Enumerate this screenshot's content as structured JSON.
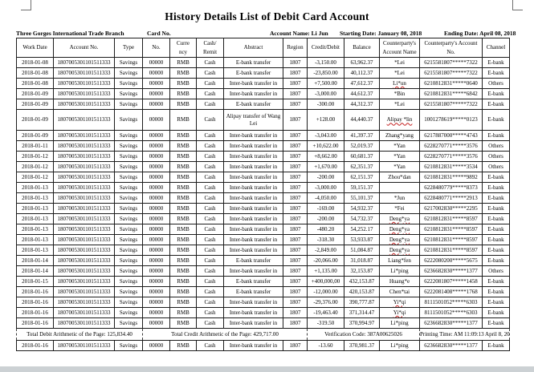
{
  "title": "History Details List of Debit Card Account",
  "info": {
    "branch": "Three Gorges International Trade Branch",
    "card_no_label": "Card No.",
    "account_name": "Account Name: Li Jun",
    "starting_date": "Starting Date: January 08, 2018",
    "ending_date": "Ending Date: April 08, 2018"
  },
  "colors": {
    "page_bg": "#ffffff",
    "table_border": "#1c1c1c",
    "wavy_underline": "#c42020",
    "bottom_strip": "#ccd1d4"
  },
  "table": {
    "columns": [
      "Work Date",
      "Account No.",
      "Type",
      "No.",
      "Curre\nncy",
      "Cash/\nRemit",
      "Abstract",
      "Region",
      "Credit/Debit",
      "Balance",
      "Counterparty's\nAccount Name",
      "Counterparty's Account\nNo.",
      "Channel"
    ],
    "rows": [
      {
        "cells": [
          "2018-01-08",
          "1807005301101511333",
          "Savings",
          "00000",
          "RMB",
          "Cash",
          "E-bank transfer",
          "1807",
          "-3,150.00",
          "63,962.37",
          "*Lei",
          "6215581807*****7322",
          "E-bank"
        ],
        "wavy": false,
        "tall": false
      },
      {
        "cells": [
          "2018-01-08",
          "1807005301101511333",
          "Savings",
          "00000",
          "RMB",
          "Cash",
          "E-bank transfer",
          "1807",
          "-23,850.00",
          "40,112.37",
          "*Lei",
          "6215581807*****7322",
          "E-bank"
        ],
        "wavy": false,
        "tall": false
      },
      {
        "cells": [
          "2018-01-08",
          "1807005301101511333",
          "Savings",
          "00000",
          "RMB",
          "Cash",
          "Inter-bank transfer in",
          "1807",
          "+7,500.00",
          "47,612.37",
          "Li*un",
          "6210812831*****0640",
          "Others"
        ],
        "wavy": true,
        "tall": false
      },
      {
        "cells": [
          "2018-01-09",
          "1807005301101511333",
          "Savings",
          "00000",
          "RMB",
          "Cash",
          "Inter-bank transfer in",
          "1807",
          "-3,000.00",
          "44,612.37",
          "*Bin",
          "6210812831*****6842",
          "E-bank"
        ],
        "wavy": false,
        "tall": false
      },
      {
        "cells": [
          "2018-01-09",
          "1807005301101511333",
          "Savings",
          "00000",
          "RMB",
          "Cash",
          "E-bank transfer",
          "1807",
          "-300.00",
          "44,312.37",
          "*Lei",
          "6215581807*****7322",
          "E-bank"
        ],
        "wavy": false,
        "tall": false
      },
      {
        "cells": [
          "2018-01-09",
          "1807005301101511333",
          "Savings",
          "00000",
          "RMB",
          "Cash",
          "Alipay transfer of Wang Lei",
          "1807",
          "+128.00",
          "44,440.37",
          "Alipay *lin",
          "1001278619*****0123",
          "E-bank"
        ],
        "wavy": true,
        "tall": true
      },
      {
        "cells": [
          "2018-01-09",
          "1807005301101511333",
          "Savings",
          "00000",
          "RMB",
          "Cash",
          "Inter-bank transfer in",
          "1807",
          "-3,043.00",
          "41,397.37",
          "Zhang*yang",
          "6217887000*****4743",
          "E-bank"
        ],
        "wavy": false,
        "tall": false
      },
      {
        "cells": [
          "2018-01-11",
          "1807005301101511333",
          "Savings",
          "00000",
          "RMB",
          "Cash",
          "Inter-bank transfer in",
          "1807",
          "+10,622.00",
          "52,019.37",
          "*Yan",
          "6228270771*****3576",
          "Others"
        ],
        "wavy": false,
        "tall": false
      },
      {
        "cells": [
          "2018-01-12",
          "1807005301101511333",
          "Savings",
          "00000",
          "RMB",
          "Cash",
          "Inter-bank transfer in",
          "1807",
          "+8,662.00",
          "60,681.37",
          "*Yan",
          "6228270771*****3576",
          "Others"
        ],
        "wavy": false,
        "tall": false
      },
      {
        "cells": [
          "2018-01-12",
          "1807005301101511333",
          "Savings",
          "00000",
          "RMB",
          "Cash",
          "Inter-bank transfer in",
          "1807",
          "+1,670.00",
          "62,351.37",
          "*Yan",
          "6210812831*****3534",
          "Others"
        ],
        "wavy": false,
        "tall": false
      },
      {
        "cells": [
          "2018-01-12",
          "1807005301101511333",
          "Savings",
          "00000",
          "RMB",
          "Cash",
          "Inter-bank transfer in",
          "1807",
          "-200.00",
          "62,151.37",
          "Zhou*dan",
          "6210812831*****9892",
          "E-bank"
        ],
        "wavy": false,
        "tall": false
      },
      {
        "cells": [
          "2018-01-13",
          "1807005301101511333",
          "Savings",
          "00000",
          "RMB",
          "Cash",
          "Inter-bank transfer in",
          "1807",
          "-3,000.00",
          "59,151.37",
          "",
          "6228480779*****8373",
          "E-bank"
        ],
        "wavy": false,
        "tall": false
      },
      {
        "cells": [
          "2018-01-13",
          "1807005301101511333",
          "Savings",
          "00000",
          "RMB",
          "Cash",
          "Inter-bank transfer in",
          "1807",
          "-4,050.00",
          "55,101.37",
          "*Jun",
          "6228480771*****2913",
          "E-bank"
        ],
        "wavy": false,
        "tall": false
      },
      {
        "cells": [
          "2018-01-13",
          "1807005301101511333",
          "Savings",
          "00000",
          "RMB",
          "Cash",
          "Inter-bank transfer in",
          "1807",
          "-169.00",
          "54,932.37",
          "*Fei",
          "6217002830*****2295",
          "E-bank"
        ],
        "wavy": false,
        "tall": false
      },
      {
        "cells": [
          "2018-01-13",
          "1807005301101511333",
          "Savings",
          "00000",
          "RMB",
          "Cash",
          "Inter-bank transfer in",
          "1807",
          "-200.00",
          "54,732.37",
          "Deng*ya",
          "6210812831*****8597",
          "E-bank"
        ],
        "wavy": true,
        "tall": false
      },
      {
        "cells": [
          "2018-01-13",
          "1807005301101511333",
          "Savings",
          "00000",
          "RMB",
          "Cash",
          "Inter-bank transfer in",
          "1807",
          "-480.20",
          "54,252.17",
          "Deng*ya",
          "6210812831*****8597",
          "E-bank"
        ],
        "wavy": true,
        "tall": false
      },
      {
        "cells": [
          "2018-01-13",
          "1807005301101511333",
          "Savings",
          "00000",
          "RMB",
          "Cash",
          "Inter-bank transfer in",
          "1807",
          "-318.30",
          "53,933.87",
          "Deng*ya",
          "6210812831*****8597",
          "E-bank"
        ],
        "wavy": true,
        "tall": false
      },
      {
        "cells": [
          "2018-01-13",
          "1807005301101511333",
          "Savings",
          "00000",
          "RMB",
          "Cash",
          "Inter-bank transfer in",
          "1807",
          "-2,849.00",
          "51,084.87",
          "Deng*ya",
          "6210812831*****8597",
          "E-bank"
        ],
        "wavy": true,
        "tall": false
      },
      {
        "cells": [
          "2018-01-14",
          "1807005301101511333",
          "Savings",
          "00000",
          "RMB",
          "Cash",
          "E-bank transfer",
          "1807",
          "-20,066.00",
          "31,018.87",
          "Liang*fen",
          "6222080200*****5675",
          "E-bank"
        ],
        "wavy": false,
        "tall": false
      },
      {
        "cells": [
          "2018-01-14",
          "1807005301101511333",
          "Savings",
          "00000",
          "RMB",
          "Cash",
          "Inter-bank transfer in",
          "1807",
          "+1,135.00",
          "32,153.87",
          "Li*ping",
          "6236682830*****1377",
          "Others"
        ],
        "wavy": false,
        "tall": false
      },
      {
        "cells": [
          "2018-01-15",
          "1807005301101511333",
          "Savings",
          "00000",
          "RMB",
          "Cash",
          "E-bank transfer",
          "1807",
          "+400,000,00",
          "432,153.87",
          "Huang*e",
          "6222081807*****1458",
          "E-bank"
        ],
        "wavy": false,
        "tall": false
      },
      {
        "cells": [
          "2018-01-16",
          "1807005301101511333",
          "Savings",
          "00000",
          "RMB",
          "Cash",
          "E-bank transfer",
          "1807",
          "-12,000.00",
          "420,153.87",
          "Chen*tai",
          "6222081408*****1768",
          "E-bank"
        ],
        "wavy": false,
        "tall": false
      },
      {
        "cells": [
          "2018-01-16",
          "1807005301101511333",
          "Savings",
          "00000",
          "RMB",
          "Cash",
          "Inter-bank transfer in",
          "1807",
          "-29,376.00",
          "390,777.87",
          "Yi*qi",
          "8111501052*****6303",
          "E-bank"
        ],
        "wavy": true,
        "tall": false
      },
      {
        "cells": [
          "2018-01-16",
          "1807005301101511333",
          "Savings",
          "00000",
          "RMB",
          "Cash",
          "Inter-bank transfer in",
          "1807",
          "-19,463.40",
          "371,314.47",
          "Yi*qi",
          "8111501052*****6303",
          "E-bank"
        ],
        "wavy": true,
        "tall": false
      },
      {
        "cells": [
          "2018-01-16",
          "1807005301101511333",
          "Savings",
          "00000",
          "RMB",
          "Cash",
          "Inter-bank transfer in",
          "1807",
          "-319.50",
          "370,994.97",
          "Li*ping",
          "6236682830*****1377",
          "E-bank"
        ],
        "wavy": false,
        "tall": false
      }
    ],
    "summary_cells": [
      {
        "label": "Total Debit Arithmetic of the Page: 125,834.40",
        "colspan": 3
      },
      {
        "label": "Total Credit Arithmetic of the Page: 429,717.00",
        "colspan": 5
      },
      {
        "label": "Verification Code: 387A00625026",
        "colspan": 3
      },
      {
        "label": "Printing Time: AM 11:09:13 April 8, 2018",
        "colspan": 2
      }
    ],
    "footer_rows": [
      {
        "cells": [
          "2018-01-16",
          "1807005301101511333",
          "Savings",
          "00000",
          "RMB",
          "Cash",
          "Inter-bank transfer in",
          "1807",
          "-13.60",
          "370,981.37",
          "Li*ping",
          "6236682830*****1377",
          "E-bank"
        ],
        "wavy": false,
        "tall": false
      }
    ]
  }
}
